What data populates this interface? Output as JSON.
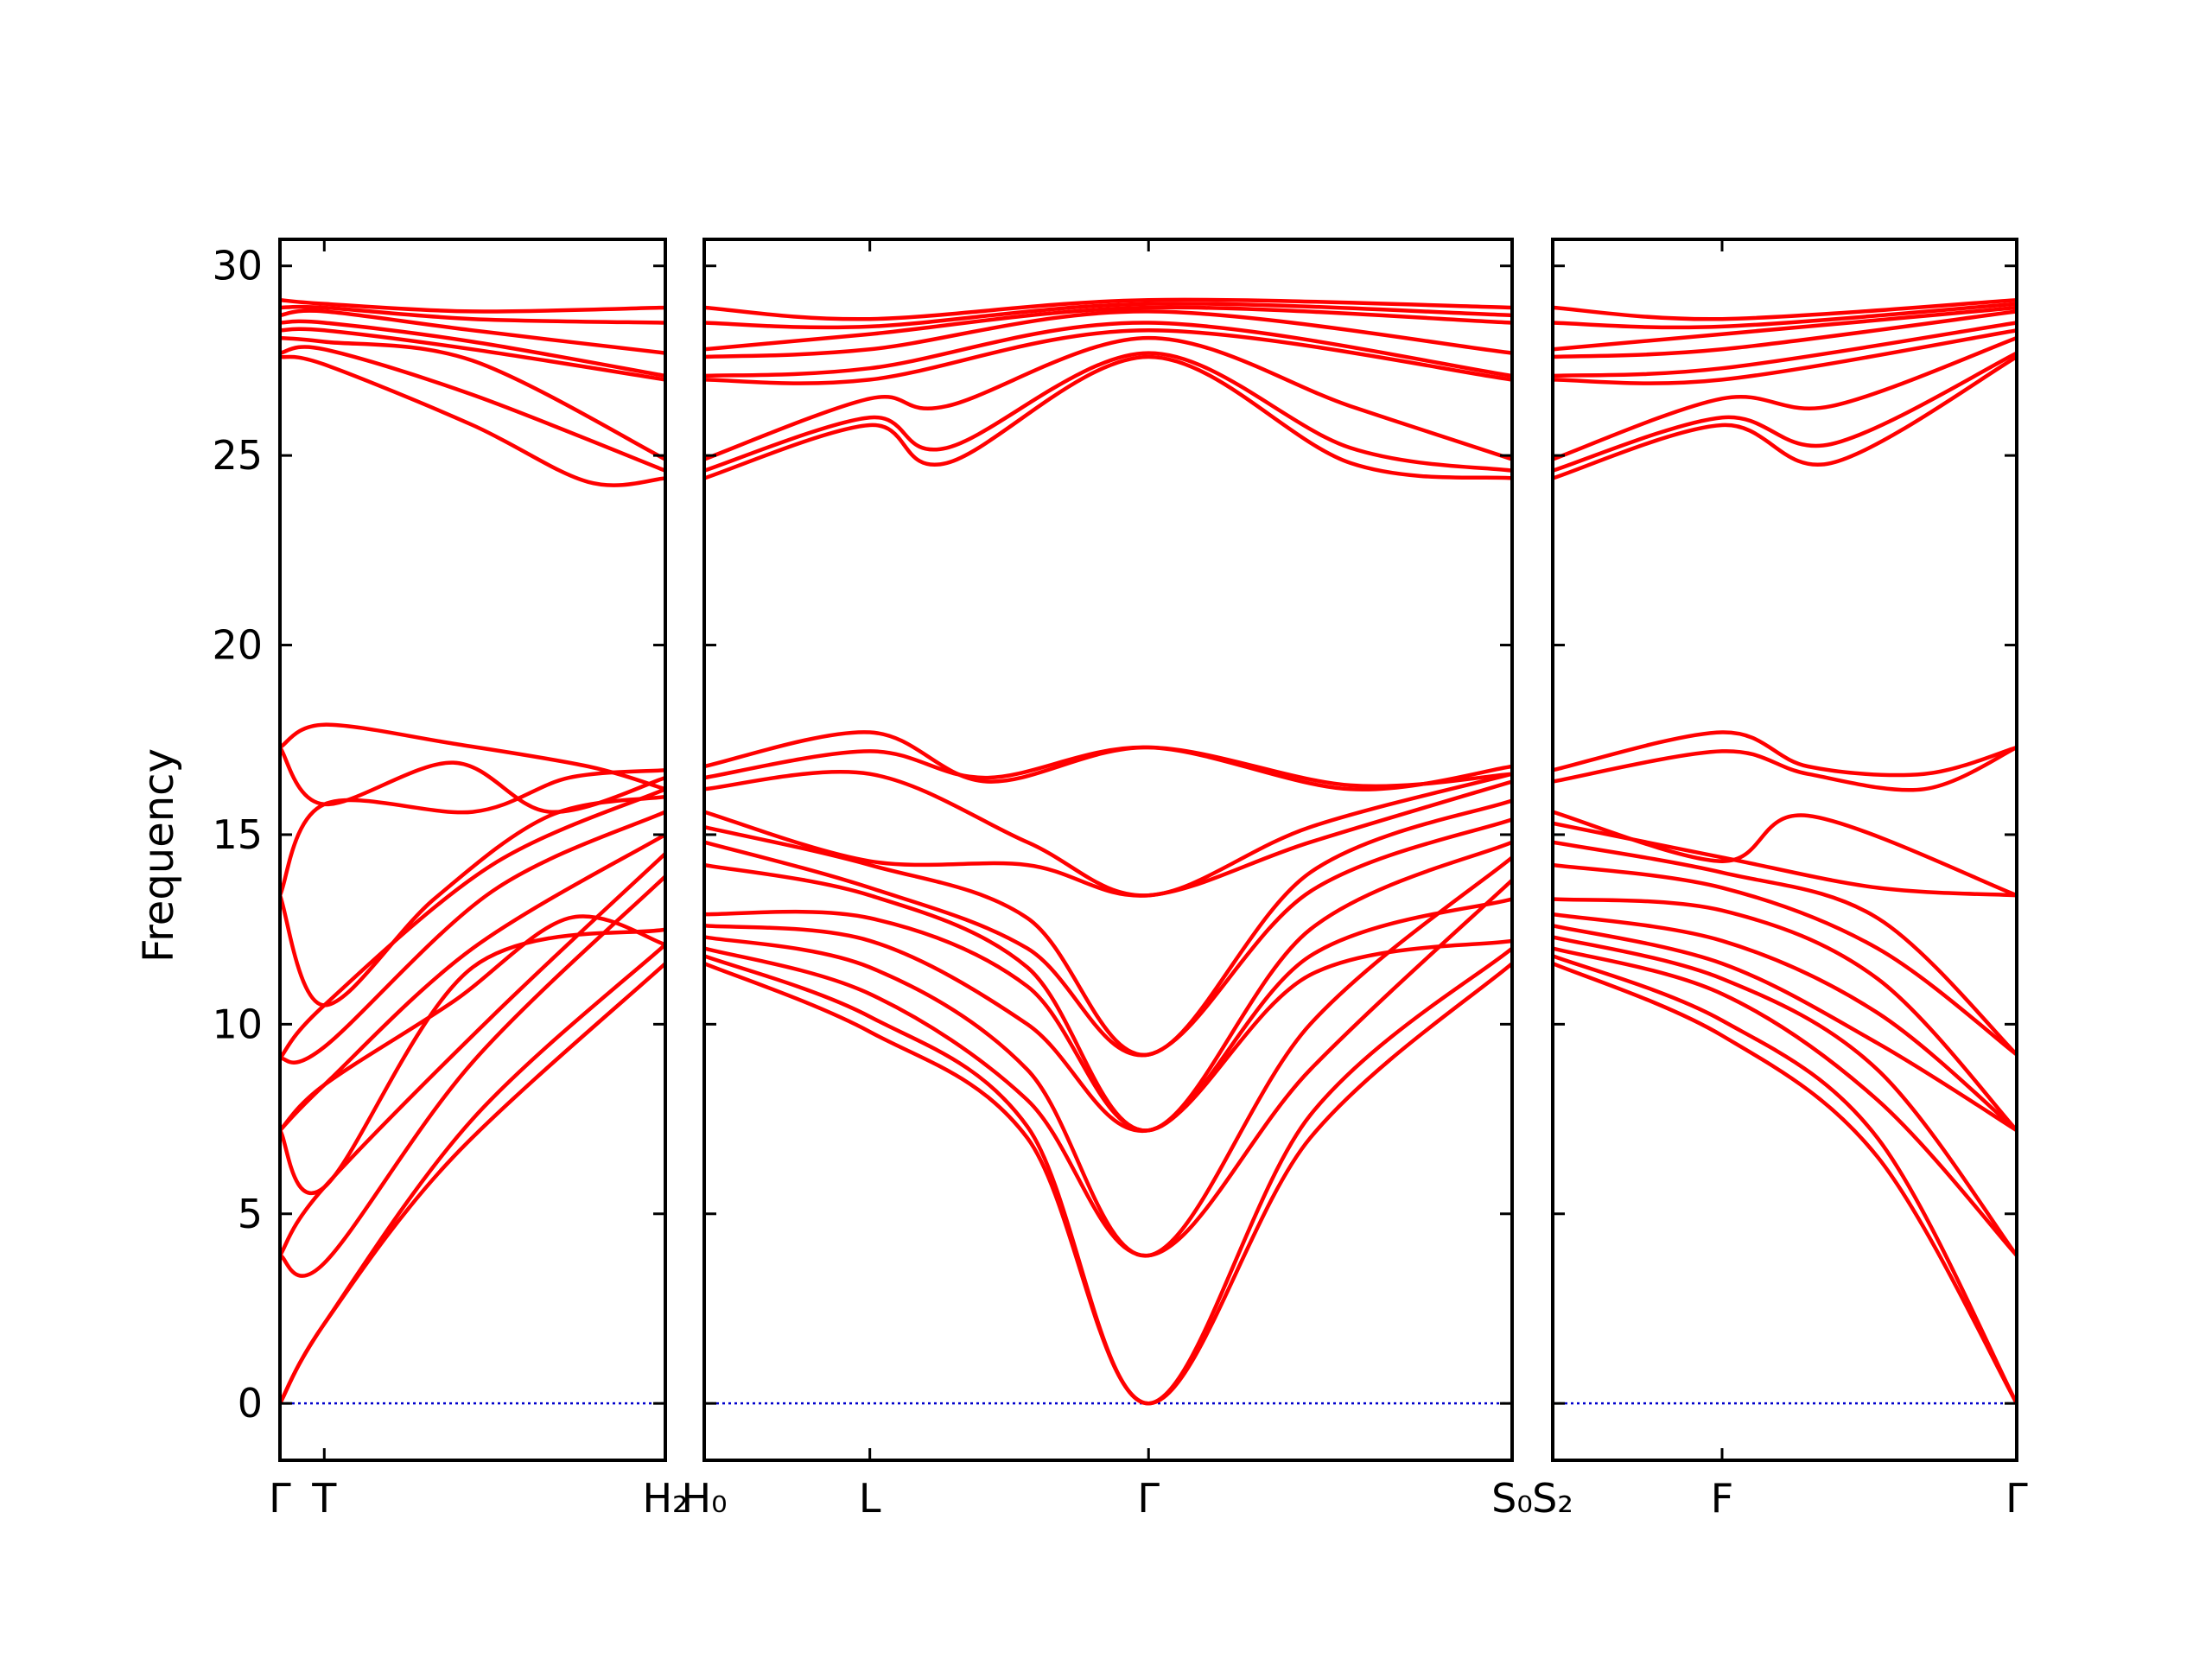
{
  "chart_data": {
    "type": "line",
    "ylabel": "Frequency",
    "ylim": [
      -1.5,
      30.7
    ],
    "yticks": [
      0,
      5,
      10,
      15,
      20,
      25,
      30
    ],
    "colors": {
      "bands": "#ff0000",
      "zero_line": "#0000cc",
      "frame": "#000000"
    },
    "grid": false,
    "panels": [
      {
        "name": "panel-1",
        "xlim": [
          0,
          1
        ],
        "ticks": [
          {
            "x": 0,
            "label": "Γ"
          },
          {
            "x": 0.115,
            "label": "T"
          },
          {
            "x": 1,
            "label": "H₂"
          }
        ],
        "series": [
          {
            "x": [
              0,
              0.115,
              0.45,
              1
            ],
            "y": [
              0,
              2.1,
              6.5,
              11.6
            ]
          },
          {
            "x": [
              0,
              0.115,
              0.5,
              1
            ],
            "y": [
              0,
              2.1,
              7.5,
              12.1
            ]
          },
          {
            "x": [
              0,
              0.115,
              0.5,
              1
            ],
            "y": [
              3.9,
              3.7,
              9.0,
              13.9
            ]
          },
          {
            "x": [
              0,
              0.115,
              0.55,
              1
            ],
            "y": [
              3.9,
              5.7,
              10.2,
              14.5
            ]
          },
          {
            "x": [
              0,
              0.115,
              0.5,
              1
            ],
            "y": [
              7.2,
              5.7,
              11.5,
              12.5
            ]
          },
          {
            "x": [
              0,
              0.115,
              0.45,
              0.75,
              1
            ],
            "y": [
              7.2,
              8.4,
              10.6,
              12.8,
              12.1
            ]
          },
          {
            "x": [
              0,
              0.115,
              0.5,
              1
            ],
            "y": [
              7.2,
              8.4,
              12.0,
              15.0
            ]
          },
          {
            "x": [
              0,
              0.115,
              0.55,
              1
            ],
            "y": [
              9.1,
              9.4,
              13.5,
              15.6
            ]
          },
          {
            "x": [
              0,
              0.115,
              0.55,
              1
            ],
            "y": [
              9.1,
              10.5,
              14.2,
              16.2
            ]
          },
          {
            "x": [
              0,
              0.115,
              0.4,
              0.7,
              1
            ],
            "y": [
              13.4,
              10.5,
              13.3,
              15.5,
              16.0
            ]
          },
          {
            "x": [
              0,
              0.115,
              0.5,
              0.75,
              1
            ],
            "y": [
              13.4,
              15.8,
              15.6,
              16.5,
              16.7
            ]
          },
          {
            "x": [
              0,
              0.115,
              0.45,
              0.7,
              1
            ],
            "y": [
              17.3,
              15.8,
              16.9,
              15.6,
              16.5
            ]
          },
          {
            "x": [
              0,
              0.115,
              0.45,
              0.8,
              1
            ],
            "y": [
              17.3,
              17.9,
              17.4,
              16.8,
              16.2
            ]
          },
          {
            "x": [
              0,
              0.115,
              0.5,
              0.8,
              1
            ],
            "y": [
              27.6,
              27.4,
              25.8,
              24.3,
              24.4
            ]
          },
          {
            "x": [
              0,
              0.115,
              0.5,
              1
            ],
            "y": [
              27.7,
              27.8,
              26.6,
              24.6
            ]
          },
          {
            "x": [
              0,
              0.115,
              0.5,
              1
            ],
            "y": [
              28.1,
              28.0,
              27.5,
              24.9
            ]
          },
          {
            "x": [
              0,
              0.115,
              0.5,
              1
            ],
            "y": [
              28.3,
              28.3,
              27.8,
              27.0
            ]
          },
          {
            "x": [
              0,
              0.115,
              0.5,
              1
            ],
            "y": [
              28.5,
              28.5,
              28.0,
              27.1
            ]
          },
          {
            "x": [
              0,
              0.115,
              0.5,
              1
            ],
            "y": [
              28.7,
              28.8,
              28.3,
              27.7
            ]
          },
          {
            "x": [
              0,
              0.115,
              0.5,
              1
            ],
            "y": [
              28.9,
              28.9,
              28.6,
              28.5
            ]
          },
          {
            "x": [
              0,
              0.115,
              0.5,
              1
            ],
            "y": [
              29.1,
              29.0,
              28.8,
              28.9
            ]
          }
        ]
      },
      {
        "name": "panel-2",
        "xlim": [
          0,
          1
        ],
        "ticks": [
          {
            "x": 0,
            "label": "H₀"
          },
          {
            "x": 0.205,
            "label": "L"
          },
          {
            "x": 0.55,
            "label": "Γ"
          },
          {
            "x": 1,
            "label": "S₀"
          }
        ],
        "series": [
          {
            "x": [
              0,
              0.205,
              0.4,
              0.55,
              0.75,
              1
            ],
            "y": [
              11.6,
              9.8,
              7.0,
              0,
              7.0,
              11.6
            ]
          },
          {
            "x": [
              0,
              0.205,
              0.4,
              0.55,
              0.75,
              1
            ],
            "y": [
              11.8,
              10.2,
              7.3,
              0,
              7.6,
              12.0
            ]
          },
          {
            "x": [
              0,
              0.205,
              0.4,
              0.55,
              0.75,
              1
            ],
            "y": [
              12.0,
              10.8,
              8.0,
              3.9,
              8.8,
              13.8
            ]
          },
          {
            "x": [
              0,
              0.205,
              0.4,
              0.55,
              0.75,
              1
            ],
            "y": [
              12.3,
              11.5,
              8.8,
              3.9,
              10.0,
              14.4
            ]
          },
          {
            "x": [
              0,
              0.205,
              0.4,
              0.55,
              0.75,
              1
            ],
            "y": [
              12.6,
              12.2,
              10.0,
              7.2,
              11.3,
              12.2
            ]
          },
          {
            "x": [
              0,
              0.205,
              0.4,
              0.55,
              0.75,
              1
            ],
            "y": [
              12.9,
              12.8,
              11.0,
              7.2,
              11.8,
              13.3
            ]
          },
          {
            "x": [
              0,
              0.205,
              0.4,
              0.55,
              0.75,
              1
            ],
            "y": [
              14.2,
              13.4,
              11.5,
              7.2,
              12.5,
              14.8
            ]
          },
          {
            "x": [
              0,
              0.205,
              0.4,
              0.55,
              0.75,
              1
            ],
            "y": [
              14.8,
              13.6,
              12.0,
              9.2,
              13.5,
              15.4
            ]
          },
          {
            "x": [
              0,
              0.205,
              0.4,
              0.55,
              0.75,
              1
            ],
            "y": [
              15.2,
              14.2,
              12.8,
              9.2,
              14.0,
              15.9
            ]
          },
          {
            "x": [
              0,
              0.205,
              0.4,
              0.55,
              0.75,
              1
            ],
            "y": [
              15.6,
              14.3,
              14.2,
              13.4,
              14.8,
              16.4
            ]
          },
          {
            "x": [
              0,
              0.205,
              0.4,
              0.55,
              0.75,
              1
            ],
            "y": [
              16.2,
              16.6,
              14.8,
              13.4,
              15.2,
              16.6
            ]
          },
          {
            "x": [
              0,
              0.205,
              0.35,
              0.55,
              0.8,
              1
            ],
            "y": [
              16.5,
              17.2,
              16.5,
              17.3,
              16.2,
              16.8
            ]
          },
          {
            "x": [
              0,
              0.205,
              0.35,
              0.55,
              0.8,
              1
            ],
            "y": [
              16.8,
              17.7,
              16.4,
              17.3,
              16.3,
              16.6
            ]
          },
          {
            "x": [
              0,
              0.205,
              0.3,
              0.55,
              0.8,
              1
            ],
            "y": [
              24.4,
              25.8,
              24.8,
              27.6,
              24.8,
              24.4
            ]
          },
          {
            "x": [
              0,
              0.205,
              0.3,
              0.55,
              0.8,
              1
            ],
            "y": [
              24.6,
              26.0,
              25.2,
              27.7,
              25.2,
              24.6
            ]
          },
          {
            "x": [
              0,
              0.205,
              0.3,
              0.55,
              0.8,
              1
            ],
            "y": [
              24.9,
              26.5,
              26.3,
              28.1,
              26.3,
              24.9
            ]
          },
          {
            "x": [
              0,
              0.205,
              0.55,
              1
            ],
            "y": [
              27.0,
              27.0,
              28.3,
              27.0
            ]
          },
          {
            "x": [
              0,
              0.205,
              0.55,
              1
            ],
            "y": [
              27.1,
              27.3,
              28.5,
              27.1
            ]
          },
          {
            "x": [
              0,
              0.205,
              0.55,
              1
            ],
            "y": [
              27.6,
              27.8,
              28.8,
              27.7
            ]
          },
          {
            "x": [
              0,
              0.205,
              0.55,
              1
            ],
            "y": [
              27.8,
              28.2,
              28.9,
              28.5
            ]
          },
          {
            "x": [
              0,
              0.205,
              0.55,
              1
            ],
            "y": [
              28.5,
              28.4,
              29.0,
              28.7
            ]
          },
          {
            "x": [
              0,
              0.205,
              0.55,
              1
            ],
            "y": [
              28.9,
              28.6,
              29.1,
              28.9
            ]
          }
        ]
      },
      {
        "name": "panel-3",
        "xlim": [
          0,
          1
        ],
        "ticks": [
          {
            "x": 0,
            "label": "S₂"
          },
          {
            "x": 0.365,
            "label": "F"
          },
          {
            "x": 1,
            "label": "Γ"
          }
        ],
        "series": [
          {
            "x": [
              0,
              0.365,
              0.7,
              1
            ],
            "y": [
              11.6,
              9.7,
              6.5,
              0
            ]
          },
          {
            "x": [
              0,
              0.365,
              0.7,
              1
            ],
            "y": [
              11.8,
              10.1,
              7.0,
              0
            ]
          },
          {
            "x": [
              0,
              0.365,
              0.7,
              1
            ],
            "y": [
              12.0,
              10.8,
              8.0,
              3.9
            ]
          },
          {
            "x": [
              0,
              0.365,
              0.7,
              1
            ],
            "y": [
              12.3,
              11.2,
              8.8,
              3.9
            ]
          },
          {
            "x": [
              0,
              0.365,
              0.7,
              1
            ],
            "y": [
              12.6,
              11.6,
              9.5,
              7.2
            ]
          },
          {
            "x": [
              0,
              0.365,
              0.7,
              1
            ],
            "y": [
              12.9,
              12.2,
              10.3,
              7.2
            ]
          },
          {
            "x": [
              0,
              0.365,
              0.7,
              1
            ],
            "y": [
              13.3,
              13.0,
              11.2,
              7.2
            ]
          },
          {
            "x": [
              0,
              0.365,
              0.7,
              1
            ],
            "y": [
              14.2,
              13.6,
              12.0,
              9.2
            ]
          },
          {
            "x": [
              0,
              0.365,
              0.7,
              1
            ],
            "y": [
              14.8,
              14.0,
              12.8,
              9.2
            ]
          },
          {
            "x": [
              0,
              0.365,
              0.7,
              1
            ],
            "y": [
              15.3,
              14.4,
              13.6,
              13.4
            ]
          },
          {
            "x": [
              0,
              0.365,
              0.55,
              1
            ],
            "y": [
              15.6,
              14.3,
              15.5,
              13.4
            ]
          },
          {
            "x": [
              0,
              0.365,
              0.55,
              0.8,
              1
            ],
            "y": [
              16.4,
              17.2,
              16.6,
              16.2,
              17.3
            ]
          },
          {
            "x": [
              0,
              0.365,
              0.55,
              0.8,
              1
            ],
            "y": [
              16.7,
              17.7,
              16.8,
              16.6,
              17.3
            ]
          },
          {
            "x": [
              0,
              0.365,
              0.6,
              1
            ],
            "y": [
              24.4,
              25.8,
              24.8,
              27.6
            ]
          },
          {
            "x": [
              0,
              0.365,
              0.6,
              1
            ],
            "y": [
              24.6,
              26.0,
              25.3,
              27.7
            ]
          },
          {
            "x": [
              0,
              0.365,
              0.6,
              1
            ],
            "y": [
              24.9,
              26.5,
              26.3,
              28.1
            ]
          },
          {
            "x": [
              0,
              0.365,
              1
            ],
            "y": [
              27.0,
              27.0,
              28.3
            ]
          },
          {
            "x": [
              0,
              0.365,
              1
            ],
            "y": [
              27.1,
              27.3,
              28.5
            ]
          },
          {
            "x": [
              0,
              0.365,
              1
            ],
            "y": [
              27.6,
              27.8,
              28.8
            ]
          },
          {
            "x": [
              0,
              0.365,
              1
            ],
            "y": [
              27.8,
              28.2,
              28.9
            ]
          },
          {
            "x": [
              0,
              0.365,
              1
            ],
            "y": [
              28.5,
              28.4,
              29.0
            ]
          },
          {
            "x": [
              0,
              0.365,
              1
            ],
            "y": [
              28.9,
              28.6,
              29.1
            ]
          }
        ]
      }
    ]
  }
}
